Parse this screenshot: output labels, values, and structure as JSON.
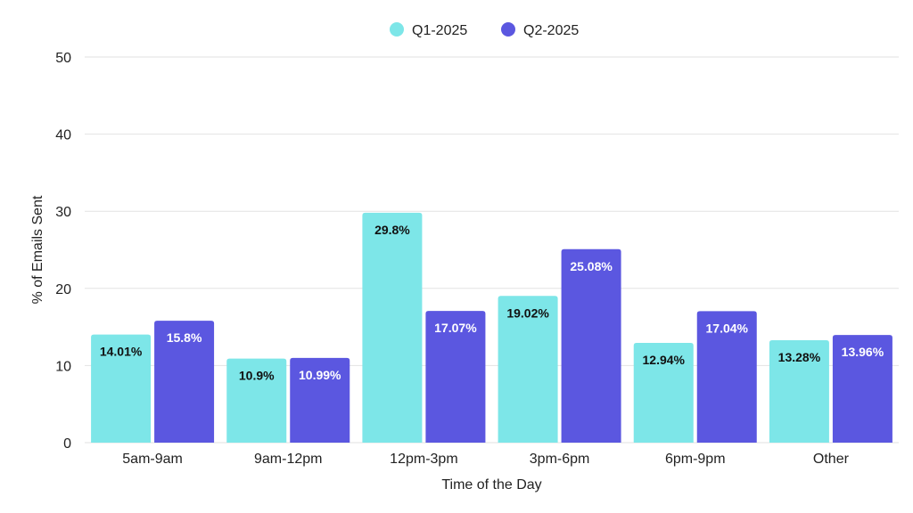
{
  "chart_data": {
    "type": "bar",
    "xlabel": "Time of the Day",
    "ylabel": "% of Emails Sent",
    "ylim": [
      0,
      50
    ],
    "yticks": [
      0,
      10,
      20,
      30,
      40,
      50
    ],
    "grid": true,
    "legend_position": "top-center",
    "categories": [
      "5am-9am",
      "9am-12pm",
      "12pm-3pm",
      "3pm-6pm",
      "6pm-9pm",
      "Other"
    ],
    "series": [
      {
        "name": "Q1-2025",
        "color": "#7de6e8",
        "label_color": "#111111",
        "values": [
          14.01,
          10.9,
          29.8,
          19.02,
          12.94,
          13.28
        ],
        "labels": [
          "14.01%",
          "10.9%",
          "29.8%",
          "19.02%",
          "12.94%",
          "13.28%"
        ]
      },
      {
        "name": "Q2-2025",
        "color": "#5b57e0",
        "label_color": "#ffffff",
        "values": [
          15.8,
          10.99,
          17.07,
          25.08,
          17.04,
          13.96
        ],
        "labels": [
          "15.8%",
          "10.99%",
          "17.07%",
          "25.08%",
          "17.04%",
          "13.96%"
        ]
      }
    ]
  }
}
